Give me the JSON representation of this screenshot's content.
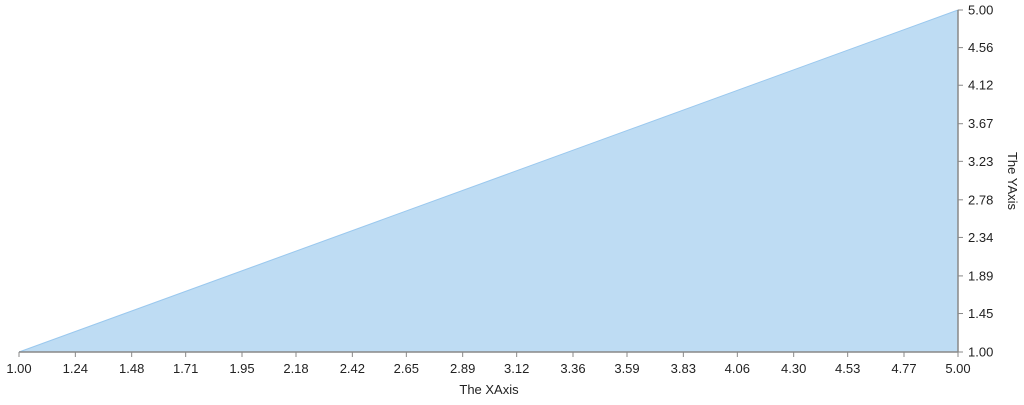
{
  "chart_data": {
    "type": "area",
    "title": "",
    "xlabel": "The XAxis",
    "ylabel": "The YAxis",
    "xlim": [
      1,
      5
    ],
    "ylim": [
      1,
      5
    ],
    "x_ticks": [
      "1.00",
      "1.24",
      "1.48",
      "1.71",
      "1.95",
      "2.18",
      "2.42",
      "2.65",
      "2.89",
      "3.12",
      "3.36",
      "3.59",
      "3.83",
      "4.06",
      "4.30",
      "4.53",
      "4.77",
      "5.00"
    ],
    "y_ticks": [
      "1.00",
      "1.45",
      "1.89",
      "2.34",
      "2.78",
      "3.23",
      "3.67",
      "4.12",
      "4.56",
      "5.00"
    ],
    "y_axis_position": "right",
    "grid": false,
    "series": [
      {
        "x": [
          1,
          5
        ],
        "y": [
          1,
          5
        ],
        "fill": "#bedcf3",
        "stroke": "#9ac8ee"
      }
    ],
    "axis_color": "#888888"
  }
}
